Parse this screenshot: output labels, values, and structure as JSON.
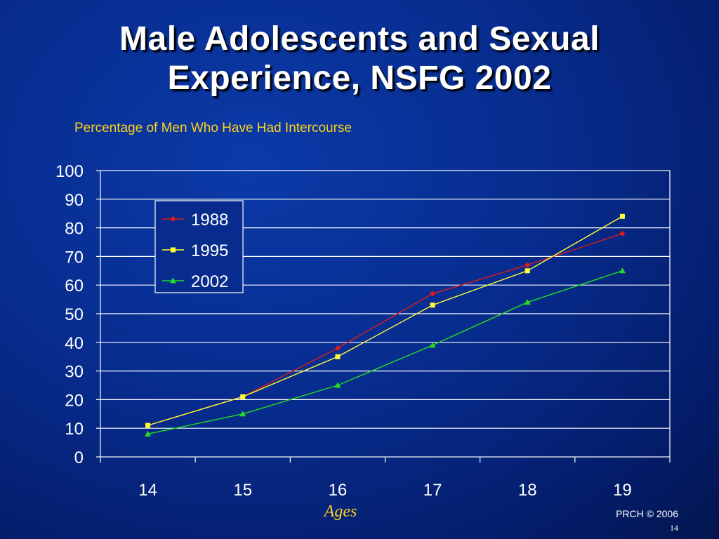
{
  "slide": {
    "title_line1": "Male Adolescents and Sexual",
    "title_line2": "Experience, NSFG 2002",
    "subtitle": "Percentage of Men Who Have Had Intercourse",
    "x_axis_title": "Ages",
    "footer": "PRCH © 2006",
    "page_number": "14"
  },
  "colors": {
    "background": "#072c8e",
    "title": "#ffffff",
    "accent_text": "#ffd21f",
    "grid": "#ffffff",
    "legend_bg": "#072c8e"
  },
  "chart_data": {
    "type": "line",
    "title": "Percentage of Men Who Have Had Intercourse",
    "xlabel": "Ages",
    "ylabel": "",
    "x": [
      "14",
      "15",
      "16",
      "17",
      "18",
      "19"
    ],
    "ylim": [
      0,
      100
    ],
    "yticks": [
      "0",
      "10",
      "20",
      "30",
      "40",
      "50",
      "60",
      "70",
      "80",
      "90",
      "100"
    ],
    "grid": true,
    "legend_placement": "top-left",
    "series": [
      {
        "name": "1988",
        "color": "#e01b1b",
        "marker": "diamond",
        "values": [
          11,
          21,
          38,
          57,
          67,
          78
        ]
      },
      {
        "name": "1995",
        "color": "#ffff33",
        "marker": "square",
        "values": [
          11,
          21,
          35,
          53,
          65,
          84
        ]
      },
      {
        "name": "2002",
        "color": "#22dd22",
        "marker": "triangle",
        "values": [
          8,
          15,
          25,
          39,
          54,
          65
        ]
      }
    ]
  }
}
